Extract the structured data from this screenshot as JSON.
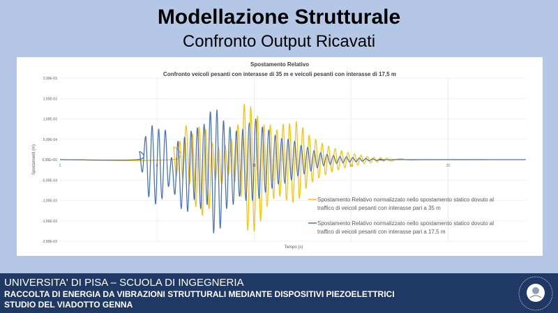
{
  "slide": {
    "title": "Modellazione Strutturale",
    "subtitle": "Confronto Output Ricavati"
  },
  "footer": {
    "line1": "UNIVERSITA' DI PISA – SCUOLA DI INGEGNERIA",
    "line2": "RACCOLTA DI ENERGIA DA VIBRAZIONI STRUTTURALI MEDIANTE DISPOSITIVI PIEZOELETTRICI",
    "line3": "STUDIO DEL VIADOTTO GENNA",
    "seal_text": "IN SUPREMAE DIGNITATIS 1343"
  },
  "colors": {
    "background": "#b4c7e7",
    "footer": "#1f3864",
    "series_35": "#ffc000",
    "series_17_5": "#4472c4"
  },
  "chart_data": {
    "type": "line",
    "title": "Spostamento Relativo",
    "subtitle": "Confronto veicoli pesanti con interasse di 35 m e veicoli pesanti con interasse di 17,5 m",
    "xlabel": "Tempo (s)",
    "ylabel": "Spostamenti (m)",
    "xlim": [
      1,
      25
    ],
    "ylim": [
      -0.002,
      0.002
    ],
    "xticks": [
      "1",
      "6",
      "11",
      "16",
      "21"
    ],
    "xtick_values": [
      1,
      6,
      11,
      16,
      21
    ],
    "yticks": [
      "2,00E-03",
      "1,50E-03",
      "1,00E-03",
      "5,00E-04",
      "0,00E+00",
      "-5,00E-04",
      "-1,00E-03",
      "-1,50E-03",
      "-2,00E-03"
    ],
    "ytick_values": [
      0.002,
      0.0015,
      0.001,
      0.0005,
      0,
      -0.0005,
      -0.001,
      -0.0015,
      -0.002
    ],
    "grid": true,
    "legend_position": "bottom-right",
    "series": [
      {
        "name": "Spostamento Relativo normalizzato nello spostamento statico dovuto al traffico di veicoli pesanti con interasse pari a 35 m",
        "color": "#ffc000",
        "points": [
          [
            1,
            0
          ],
          [
            6.78,
            0
          ],
          [
            6.85,
            0.0003
          ],
          [
            7.0,
            -0.0004
          ],
          [
            7.17,
            0.00045
          ],
          [
            7.33,
            -0.00045
          ],
          [
            7.5,
            0.00083
          ],
          [
            7.67,
            -0.0006
          ],
          [
            7.83,
            0.00063
          ],
          [
            8.0,
            -0.00115
          ],
          [
            8.17,
            0.0008
          ],
          [
            8.33,
            -0.00137
          ],
          [
            8.5,
            0.00075
          ],
          [
            8.67,
            -0.0012
          ],
          [
            8.83,
            0.0004
          ],
          [
            9.0,
            -0.0005
          ],
          [
            9.17,
            0.0003
          ],
          [
            9.33,
            -0.0006
          ],
          [
            9.5,
            0.00035
          ],
          [
            9.67,
            -0.0004
          ],
          [
            9.83,
            0.0005
          ],
          [
            10.0,
            -0.00055
          ],
          [
            10.17,
            0.00085
          ],
          [
            10.33,
            -0.0009
          ],
          [
            10.5,
            0.00135
          ],
          [
            10.67,
            -0.00173
          ],
          [
            10.83,
            0.0013
          ],
          [
            11.0,
            -0.00175
          ],
          [
            11.17,
            0.00107
          ],
          [
            11.33,
            -0.0015
          ],
          [
            11.5,
            0.00085
          ],
          [
            11.67,
            -0.00115
          ],
          [
            11.83,
            0.00085
          ],
          [
            12.0,
            -0.00095
          ],
          [
            12.17,
            0.00073
          ],
          [
            12.33,
            -0.0009
          ],
          [
            12.5,
            0.00087
          ],
          [
            12.67,
            -0.001
          ],
          [
            12.83,
            0.00088
          ],
          [
            13.0,
            -0.00105
          ],
          [
            13.17,
            0.00093
          ],
          [
            13.33,
            -0.00095
          ],
          [
            13.5,
            0.00078
          ],
          [
            13.67,
            -0.0007
          ],
          [
            13.83,
            0.0006
          ],
          [
            14.0,
            -0.00055
          ],
          [
            14.17,
            0.0005
          ],
          [
            14.33,
            -0.00045
          ],
          [
            14.5,
            0.0004
          ],
          [
            14.67,
            -0.00037
          ],
          [
            14.83,
            0.00033
          ],
          [
            15.0,
            -0.0003
          ],
          [
            15.17,
            0.00027
          ],
          [
            15.33,
            -0.00025
          ],
          [
            15.5,
            0.00022
          ],
          [
            15.67,
            -0.0002
          ],
          [
            15.83,
            0.00018
          ],
          [
            16.0,
            -0.00017
          ],
          [
            16.17,
            0.00014
          ],
          [
            16.33,
            -0.00013
          ],
          [
            16.5,
            0.00011
          ],
          [
            16.67,
            -0.0001
          ],
          [
            16.83,
            8e-05
          ],
          [
            17.0,
            -8e-05
          ],
          [
            17.17,
            6e-05
          ],
          [
            17.33,
            -6e-05
          ],
          [
            17.5,
            5e-05
          ],
          [
            17.67,
            -4e-05
          ],
          [
            17.83,
            4e-05
          ],
          [
            18.0,
            -3e-05
          ],
          [
            18.5,
            2e-05
          ],
          [
            19.0,
            -1e-05
          ],
          [
            20.0,
            0
          ],
          [
            23.0,
            0
          ]
        ]
      },
      {
        "name": "Spostamento Relativo normalizzato nello spostamento statico dovuto al traffico di veicoli pesanti con interasse pari a 17,5 m",
        "color": "#4472c4",
        "points": [
          [
            1,
            0
          ],
          [
            5.0,
            0
          ],
          [
            5.1,
            0.00019
          ],
          [
            5.25,
            -0.0003
          ],
          [
            5.42,
            0.00056
          ],
          [
            5.58,
            -0.00091
          ],
          [
            5.75,
            0.00083
          ],
          [
            5.92,
            -0.00109
          ],
          [
            6.08,
            0.00075
          ],
          [
            6.25,
            -0.00096
          ],
          [
            6.42,
            0.00072
          ],
          [
            6.58,
            -0.00065
          ],
          [
            6.75,
            5e-05
          ],
          [
            6.92,
            -0.00085
          ],
          [
            7.08,
            0.00045
          ],
          [
            7.25,
            -0.0012
          ],
          [
            7.42,
            0.00055
          ],
          [
            7.58,
            -0.00127
          ],
          [
            7.75,
            0.0007
          ],
          [
            7.92,
            -0.00098
          ],
          [
            8.08,
            0.00078
          ],
          [
            8.25,
            -0.0012
          ],
          [
            8.42,
            0.00087
          ],
          [
            8.58,
            -0.0011
          ],
          [
            8.75,
            0.00117
          ],
          [
            8.92,
            -0.0018
          ],
          [
            9.08,
            0.00122
          ],
          [
            9.25,
            -0.00168
          ],
          [
            9.42,
            0.00095
          ],
          [
            9.58,
            -0.0012
          ],
          [
            9.75,
            0.0008
          ],
          [
            9.92,
            -0.0011
          ],
          [
            10.08,
            0.0007
          ],
          [
            10.25,
            -0.0009
          ],
          [
            10.42,
            0.00075
          ],
          [
            10.58,
            -0.001
          ],
          [
            10.75,
            0.0009
          ],
          [
            10.92,
            -0.001
          ],
          [
            11.08,
            0.001
          ],
          [
            11.25,
            -0.00095
          ],
          [
            11.42,
            0.0008
          ],
          [
            11.58,
            -0.0008
          ],
          [
            11.75,
            0.00073
          ],
          [
            11.92,
            -0.0007
          ],
          [
            12.08,
            0.0006
          ],
          [
            12.25,
            -0.0006
          ],
          [
            12.42,
            0.00052
          ],
          [
            12.58,
            -0.00058
          ],
          [
            12.75,
            0.0005
          ],
          [
            12.92,
            -0.0005
          ],
          [
            13.08,
            0.00045
          ],
          [
            13.25,
            -0.0004
          ],
          [
            13.42,
            0.00035
          ],
          [
            13.58,
            -0.00035
          ],
          [
            13.75,
            0.0003
          ],
          [
            13.92,
            -0.00028
          ],
          [
            14.08,
            0.00022
          ],
          [
            14.25,
            -0.0002
          ],
          [
            14.42,
            0.00017
          ],
          [
            14.58,
            -0.00015
          ],
          [
            14.75,
            0.00013
          ],
          [
            14.92,
            -0.00012
          ],
          [
            15.08,
            0.0001
          ],
          [
            15.25,
            -9e-05
          ],
          [
            15.42,
            8e-05
          ],
          [
            15.58,
            -8e-05
          ],
          [
            15.75,
            7e-05
          ],
          [
            15.92,
            -6e-05
          ],
          [
            16.08,
            5e-05
          ],
          [
            16.25,
            -5e-05
          ],
          [
            16.42,
            4e-05
          ],
          [
            16.58,
            -4e-05
          ],
          [
            16.75,
            3e-05
          ],
          [
            16.92,
            -3e-05
          ],
          [
            17.1,
            2e-05
          ],
          [
            17.3,
            -2e-05
          ],
          [
            17.5,
            1e-05
          ],
          [
            17.7,
            -1e-05
          ],
          [
            18.0,
            0
          ],
          [
            25.0,
            0
          ]
        ]
      }
    ]
  }
}
